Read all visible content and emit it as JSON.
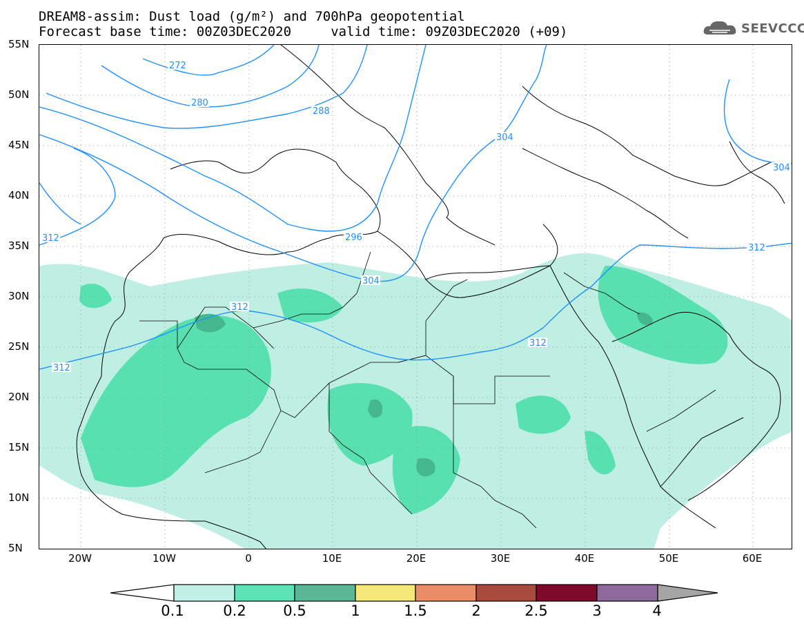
{
  "header": {
    "title_line1": "DREAM8-assim: Dust load (g/m²) and 700hPa geopotential",
    "title_line2": "Forecast base time: 00Z03DEC2020     valid time: 09Z03DEC2020 (+09)",
    "logo_text": "SEEVCCC",
    "logo_icon": "cloud-icon"
  },
  "map": {
    "lat_labels": [
      "55N",
      "50N",
      "45N",
      "40N",
      "35N",
      "30N",
      "25N",
      "20N",
      "15N",
      "10N",
      "5N"
    ],
    "lon_labels": [
      "20W",
      "10W",
      "0",
      "10E",
      "20E",
      "30E",
      "40E",
      "50E",
      "60E"
    ],
    "contour_labels": [
      "272",
      "280",
      "288",
      "296",
      "304",
      "304",
      "304",
      "312",
      "312",
      "312",
      "312",
      "312"
    ],
    "colors": {
      "geopotential_line": "#1e90ff",
      "coastline": "#000000",
      "dust_01": "#bfeee2",
      "dust_02": "#58e0b0",
      "dust_05": "#44b88c"
    }
  },
  "colorbar": {
    "labels": [
      "0.1",
      "0.2",
      "0.5",
      "1",
      "1.5",
      "2",
      "2.5",
      "3",
      "4"
    ],
    "colors": [
      "#ffffff",
      "#c2f0e6",
      "#5de3b5",
      "#5ab896",
      "#f4e87a",
      "#e98d66",
      "#a94a3e",
      "#7d0a2a",
      "#8e6a9c",
      "#a5a5a5"
    ]
  }
}
